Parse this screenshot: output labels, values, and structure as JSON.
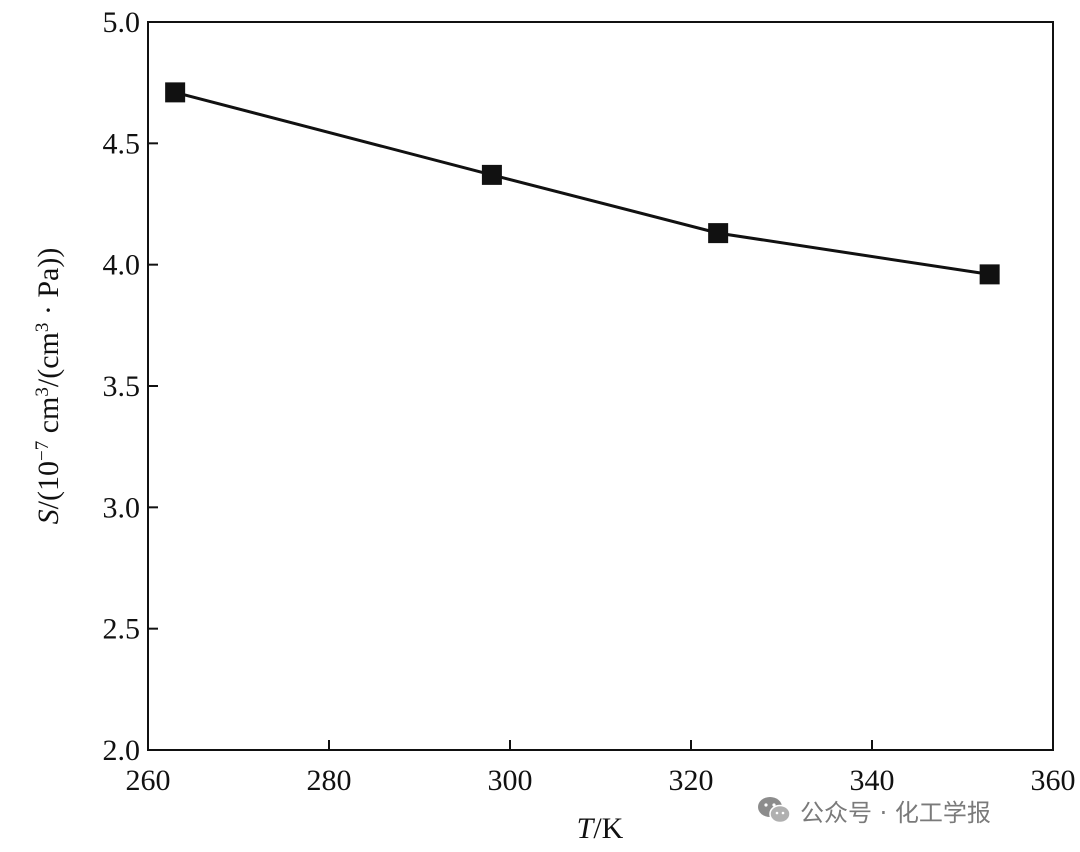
{
  "chart_data": {
    "type": "line",
    "x": [
      263,
      298,
      323,
      353
    ],
    "series": [
      {
        "values": [
          4.71,
          4.37,
          4.13,
          3.96
        ]
      }
    ],
    "xlim": [
      260,
      360
    ],
    "ylim": [
      2.0,
      5.0
    ],
    "xticks": [
      260,
      280,
      300,
      320,
      340,
      360
    ],
    "yticks": [
      2.0,
      2.5,
      3.0,
      3.5,
      4.0,
      4.5,
      5.0
    ],
    "xtick_labels": [
      "260",
      "280",
      "300",
      "320",
      "340",
      "360"
    ],
    "ytick_labels": [
      "2.0",
      "2.5",
      "3.0",
      "3.5",
      "4.0",
      "4.5",
      "5.0"
    ],
    "xlabel": {
      "var": "T",
      "unit": "/K"
    },
    "ylabel": {
      "var": "S",
      "pre": "/(10",
      "exp1": "−7",
      "mid": " cm",
      "exp2": "3",
      "post": "/(cm",
      "exp3": "3",
      "tail": " · Pa))"
    },
    "grid": false,
    "marker": "square",
    "colors": {
      "line": "#111111",
      "marker": "#111111"
    }
  },
  "watermark": {
    "text": "公众号 · 化工学报",
    "icon": "wechat-icon"
  }
}
